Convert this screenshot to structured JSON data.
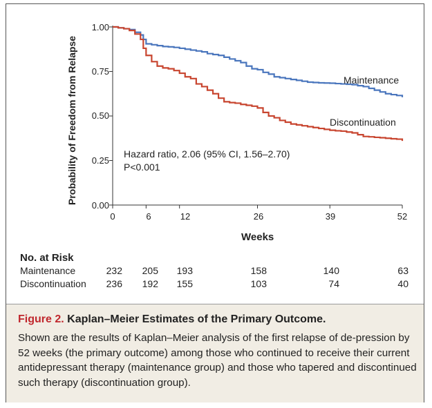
{
  "chart_data": {
    "type": "line",
    "title": "Kaplan–Meier Estimates of the Primary Outcome",
    "xlabel": "Weeks",
    "ylabel": "Probability of Freedom from Relapse",
    "xlim": [
      0,
      52
    ],
    "ylim": [
      0,
      1
    ],
    "x_ticks": [
      "0",
      "6",
      "12",
      "26",
      "39",
      "52"
    ],
    "y_ticks": [
      "0.00",
      "0.25",
      "0.50",
      "0.75",
      "1.00"
    ],
    "series": [
      {
        "name": "Maintenance",
        "color": "#4a76bd",
        "x": [
          0,
          1,
          2,
          3,
          4,
          5,
          5.5,
          6,
          7,
          8,
          9,
          10,
          11,
          12,
          13,
          14,
          15,
          16,
          17,
          18,
          19,
          20,
          21,
          22,
          23,
          24,
          25,
          26,
          27,
          28,
          29,
          30,
          31,
          32,
          33,
          34,
          35,
          36,
          37,
          38,
          39,
          40,
          41,
          42,
          43,
          44,
          45,
          46,
          47,
          48,
          49,
          50,
          51,
          52
        ],
        "y": [
          1.0,
          0.995,
          0.99,
          0.985,
          0.97,
          0.955,
          0.93,
          0.905,
          0.9,
          0.895,
          0.89,
          0.888,
          0.885,
          0.88,
          0.875,
          0.87,
          0.865,
          0.86,
          0.85,
          0.845,
          0.84,
          0.83,
          0.82,
          0.81,
          0.8,
          0.78,
          0.765,
          0.76,
          0.745,
          0.735,
          0.72,
          0.715,
          0.71,
          0.705,
          0.7,
          0.695,
          0.69,
          0.688,
          0.686,
          0.685,
          0.684,
          0.682,
          0.68,
          0.678,
          0.676,
          0.67,
          0.665,
          0.655,
          0.645,
          0.635,
          0.625,
          0.62,
          0.615,
          0.605
        ]
      },
      {
        "name": "Discontinuation",
        "color": "#c8452f",
        "x": [
          0,
          1,
          2,
          3,
          4,
          5,
          5.5,
          6,
          7,
          8,
          9,
          10,
          11,
          12,
          13,
          14,
          15,
          16,
          17,
          18,
          19,
          20,
          21,
          22,
          23,
          24,
          25,
          26,
          27,
          28,
          29,
          30,
          31,
          32,
          33,
          34,
          35,
          36,
          37,
          38,
          39,
          40,
          41,
          42,
          43,
          44,
          45,
          46,
          47,
          48,
          49,
          50,
          51,
          52
        ],
        "y": [
          1.0,
          0.995,
          0.99,
          0.98,
          0.96,
          0.93,
          0.88,
          0.84,
          0.805,
          0.78,
          0.77,
          0.765,
          0.755,
          0.74,
          0.72,
          0.71,
          0.68,
          0.665,
          0.645,
          0.625,
          0.6,
          0.58,
          0.575,
          0.572,
          0.565,
          0.56,
          0.555,
          0.545,
          0.52,
          0.5,
          0.49,
          0.475,
          0.465,
          0.455,
          0.45,
          0.445,
          0.44,
          0.435,
          0.43,
          0.425,
          0.42,
          0.417,
          0.415,
          0.41,
          0.405,
          0.395,
          0.385,
          0.383,
          0.38,
          0.378,
          0.375,
          0.372,
          0.37,
          0.36
        ]
      }
    ],
    "annotations": [
      "Hazard ratio, 2.06 (95% CI, 1.56–2.70)",
      "P<0.001"
    ]
  },
  "risk_table": {
    "title": "No. at Risk",
    "weeks": [
      0,
      6,
      12,
      26,
      39,
      52
    ],
    "rows": [
      {
        "label": "Maintenance",
        "values": [
          "232",
          "205",
          "193",
          "158",
          "140",
          "63"
        ]
      },
      {
        "label": "Discontinuation",
        "values": [
          "236",
          "192",
          "155",
          "103",
          "74",
          "40"
        ]
      }
    ]
  },
  "caption": {
    "figure_label": "Figure 2.",
    "figure_title": "Kaplan–Meier Estimates of the Primary Outcome.",
    "text": "Shown are the results of Kaplan–Meier analysis of the first relapse of de-pression by 52 weeks (the primary outcome) among those who continued to receive their current antidepressant therapy (maintenance group) and those who tapered and discontinued such therapy (discontinuation group)."
  }
}
